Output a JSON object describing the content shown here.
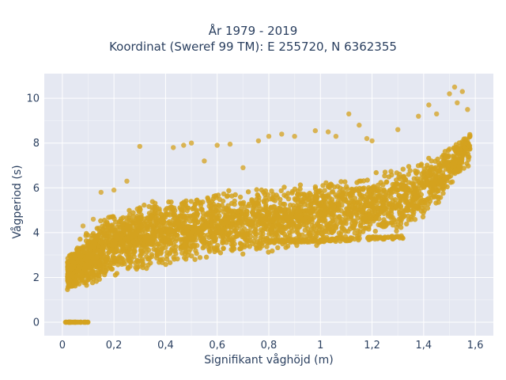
{
  "chart_data": {
    "type": "scatter",
    "title_lines": [
      "År 1979 - 2019",
      "Koordinat (Sweref 99 TM): E 255720, N 6362355"
    ],
    "xlabel": "Signifikant våghöjd (m)",
    "ylabel": "Vågperiod (s)",
    "xlim": [
      -0.07,
      1.67
    ],
    "ylim": [
      -0.6,
      11.1
    ],
    "xticks": [
      0,
      0.2,
      0.4,
      0.6,
      0.8,
      1,
      1.2,
      1.4,
      1.6
    ],
    "xtick_labels": [
      "0",
      "0,2",
      "0,4",
      "0,6",
      "0,8",
      "1",
      "1,2",
      "1,4",
      "1,6"
    ],
    "yticks": [
      0,
      2,
      4,
      6,
      8,
      10
    ],
    "ytick_labels": [
      "0",
      "2",
      "4",
      "6",
      "8",
      "10"
    ],
    "grid": true,
    "marker_color": "#D4A21E",
    "background_color": "#E5E8F2",
    "envelope": {
      "lower": [
        [
          0.02,
          1.4
        ],
        [
          0.1,
          1.5
        ],
        [
          0.2,
          2.0
        ],
        [
          0.4,
          2.4
        ],
        [
          0.6,
          2.8
        ],
        [
          0.8,
          3.1
        ],
        [
          1.0,
          3.4
        ],
        [
          1.2,
          3.7
        ],
        [
          1.3,
          4.0
        ],
        [
          1.4,
          4.6
        ],
        [
          1.5,
          5.8
        ],
        [
          1.58,
          7.0
        ]
      ],
      "upper": [
        [
          0.02,
          3.0
        ],
        [
          0.1,
          4.2
        ],
        [
          0.2,
          5.0
        ],
        [
          0.4,
          5.6
        ],
        [
          0.6,
          5.9
        ],
        [
          0.8,
          6.1
        ],
        [
          1.0,
          6.3
        ],
        [
          1.2,
          6.7
        ],
        [
          1.4,
          7.3
        ],
        [
          1.5,
          7.9
        ],
        [
          1.58,
          8.6
        ]
      ]
    },
    "secondary_band": [
      [
        0.8,
        3.6
      ],
      [
        1.0,
        3.65
      ],
      [
        1.2,
        3.75
      ],
      [
        1.32,
        3.8
      ]
    ],
    "zero_period_points": [
      [
        0.01,
        0
      ],
      [
        0.03,
        0
      ],
      [
        0.05,
        0
      ],
      [
        0.07,
        0
      ],
      [
        0.1,
        0
      ]
    ],
    "outliers": [
      [
        0.3,
        7.85
      ],
      [
        0.43,
        7.8
      ],
      [
        0.47,
        7.9
      ],
      [
        0.5,
        8.0
      ],
      [
        0.6,
        7.9
      ],
      [
        0.65,
        7.95
      ],
      [
        0.76,
        8.1
      ],
      [
        0.8,
        8.3
      ],
      [
        0.85,
        8.4
      ],
      [
        0.9,
        8.3
      ],
      [
        0.98,
        8.55
      ],
      [
        1.03,
        8.5
      ],
      [
        1.06,
        8.3
      ],
      [
        1.11,
        9.3
      ],
      [
        1.15,
        8.8
      ],
      [
        1.18,
        8.2
      ],
      [
        1.2,
        8.1
      ],
      [
        1.3,
        8.6
      ],
      [
        1.38,
        9.2
      ],
      [
        1.42,
        9.7
      ],
      [
        1.45,
        9.3
      ],
      [
        1.5,
        10.2
      ],
      [
        1.52,
        10.5
      ],
      [
        1.53,
        9.8
      ],
      [
        1.55,
        10.3
      ],
      [
        1.57,
        9.5
      ],
      [
        0.2,
        5.9
      ],
      [
        0.25,
        6.3
      ],
      [
        0.15,
        5.8
      ],
      [
        0.08,
        4.3
      ],
      [
        0.12,
        4.6
      ],
      [
        0.55,
        7.2
      ],
      [
        0.7,
        6.9
      ]
    ]
  }
}
